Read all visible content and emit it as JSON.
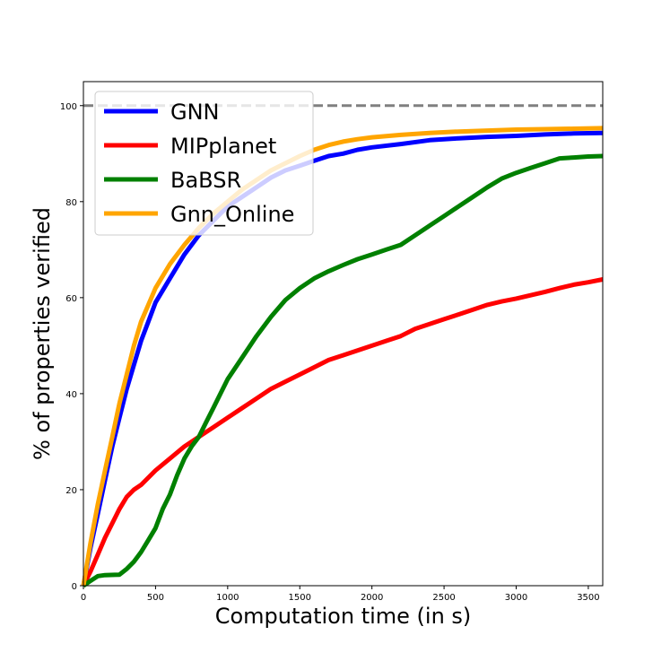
{
  "chart_data": {
    "type": "line",
    "xlabel": "Computation time (in s)",
    "ylabel": "% of properties verified",
    "xlim": [
      0,
      3600
    ],
    "ylim": [
      0,
      105
    ],
    "xticks": [
      0,
      500,
      1000,
      1500,
      2000,
      2500,
      3000,
      3500
    ],
    "yticks": [
      0,
      20,
      40,
      60,
      80,
      100
    ],
    "reference_line": {
      "y": 100,
      "style": "dashed",
      "color": "#808080"
    },
    "legend_position": "top-left",
    "grid": false,
    "series": [
      {
        "name": "GNN",
        "color": "#0000ff",
        "points": [
          [
            0,
            0
          ],
          [
            50,
            8
          ],
          [
            100,
            15
          ],
          [
            150,
            22
          ],
          [
            200,
            29
          ],
          [
            250,
            35
          ],
          [
            300,
            41
          ],
          [
            350,
            46
          ],
          [
            400,
            51
          ],
          [
            450,
            55
          ],
          [
            500,
            59
          ],
          [
            600,
            64
          ],
          [
            700,
            69
          ],
          [
            800,
            73
          ],
          [
            900,
            76
          ],
          [
            1000,
            79
          ],
          [
            1100,
            81
          ],
          [
            1200,
            83
          ],
          [
            1300,
            85
          ],
          [
            1400,
            86.5
          ],
          [
            1500,
            87.5
          ],
          [
            1600,
            88.5
          ],
          [
            1700,
            89.5
          ],
          [
            1800,
            90
          ],
          [
            1900,
            90.8
          ],
          [
            2000,
            91.3
          ],
          [
            2200,
            92
          ],
          [
            2400,
            92.8
          ],
          [
            2600,
            93.2
          ],
          [
            2800,
            93.5
          ],
          [
            3000,
            93.7
          ],
          [
            3200,
            94
          ],
          [
            3400,
            94.2
          ],
          [
            3600,
            94.3
          ]
        ]
      },
      {
        "name": "MIPplanet",
        "color": "#ff0000",
        "points": [
          [
            0,
            0
          ],
          [
            50,
            3
          ],
          [
            100,
            6.5
          ],
          [
            150,
            10
          ],
          [
            200,
            13
          ],
          [
            250,
            16
          ],
          [
            300,
            18.5
          ],
          [
            350,
            20
          ],
          [
            400,
            21
          ],
          [
            500,
            24
          ],
          [
            600,
            26.5
          ],
          [
            700,
            29
          ],
          [
            800,
            31
          ],
          [
            900,
            33
          ],
          [
            1000,
            35
          ],
          [
            1100,
            37
          ],
          [
            1200,
            39
          ],
          [
            1300,
            41
          ],
          [
            1400,
            42.5
          ],
          [
            1500,
            44
          ],
          [
            1600,
            45.5
          ],
          [
            1700,
            47
          ],
          [
            1800,
            48
          ],
          [
            1900,
            49
          ],
          [
            2000,
            50
          ],
          [
            2100,
            51
          ],
          [
            2200,
            52
          ],
          [
            2300,
            53.5
          ],
          [
            2400,
            54.5
          ],
          [
            2500,
            55.5
          ],
          [
            2600,
            56.5
          ],
          [
            2700,
            57.5
          ],
          [
            2800,
            58.5
          ],
          [
            2900,
            59.2
          ],
          [
            3000,
            59.8
          ],
          [
            3100,
            60.5
          ],
          [
            3200,
            61.2
          ],
          [
            3300,
            62
          ],
          [
            3400,
            62.7
          ],
          [
            3500,
            63.2
          ],
          [
            3600,
            63.8
          ]
        ]
      },
      {
        "name": "BaBSR",
        "color": "#008000",
        "points": [
          [
            0,
            0
          ],
          [
            50,
            1
          ],
          [
            100,
            2
          ],
          [
            150,
            2.2
          ],
          [
            250,
            2.3
          ],
          [
            300,
            3.5
          ],
          [
            350,
            5
          ],
          [
            400,
            7
          ],
          [
            450,
            9.5
          ],
          [
            500,
            12
          ],
          [
            550,
            16
          ],
          [
            600,
            19
          ],
          [
            650,
            23
          ],
          [
            700,
            26.5
          ],
          [
            750,
            29
          ],
          [
            800,
            31
          ],
          [
            850,
            34
          ],
          [
            900,
            37
          ],
          [
            950,
            40
          ],
          [
            1000,
            43
          ],
          [
            1100,
            47.5
          ],
          [
            1200,
            52
          ],
          [
            1300,
            56
          ],
          [
            1400,
            59.5
          ],
          [
            1500,
            62
          ],
          [
            1600,
            64
          ],
          [
            1700,
            65.5
          ],
          [
            1800,
            66.8
          ],
          [
            1900,
            68
          ],
          [
            2000,
            69
          ],
          [
            2100,
            70
          ],
          [
            2200,
            71
          ],
          [
            2300,
            73
          ],
          [
            2400,
            75
          ],
          [
            2500,
            77
          ],
          [
            2600,
            79
          ],
          [
            2700,
            81
          ],
          [
            2800,
            83
          ],
          [
            2900,
            84.8
          ],
          [
            3000,
            86
          ],
          [
            3100,
            87
          ],
          [
            3200,
            88
          ],
          [
            3300,
            89
          ],
          [
            3400,
            89.2
          ],
          [
            3500,
            89.4
          ],
          [
            3600,
            89.5
          ]
        ]
      },
      {
        "name": "Gnn_Online",
        "color": "#ffa500",
        "points": [
          [
            0,
            0
          ],
          [
            50,
            9
          ],
          [
            100,
            17
          ],
          [
            150,
            24
          ],
          [
            200,
            31
          ],
          [
            250,
            38
          ],
          [
            300,
            44
          ],
          [
            350,
            50
          ],
          [
            400,
            55
          ],
          [
            450,
            58.5
          ],
          [
            500,
            62
          ],
          [
            600,
            67
          ],
          [
            700,
            71
          ],
          [
            800,
            74.5
          ],
          [
            900,
            77.5
          ],
          [
            1000,
            80
          ],
          [
            1100,
            82.5
          ],
          [
            1200,
            84.5
          ],
          [
            1300,
            86.5
          ],
          [
            1400,
            88
          ],
          [
            1500,
            89.5
          ],
          [
            1600,
            90.8
          ],
          [
            1700,
            91.8
          ],
          [
            1800,
            92.5
          ],
          [
            1900,
            93
          ],
          [
            2000,
            93.4
          ],
          [
            2200,
            93.9
          ],
          [
            2400,
            94.3
          ],
          [
            2600,
            94.6
          ],
          [
            2800,
            94.8
          ],
          [
            3000,
            95
          ],
          [
            3200,
            95.1
          ],
          [
            3400,
            95.2
          ],
          [
            3600,
            95.3
          ]
        ]
      }
    ]
  }
}
